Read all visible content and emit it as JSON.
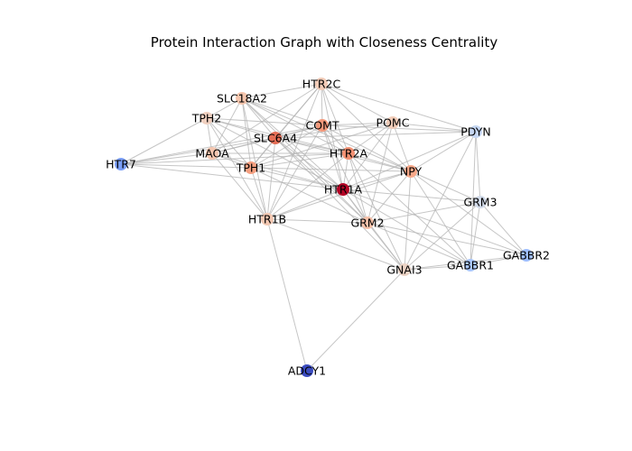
{
  "title": "Protein Interaction Graph with Closeness Centrality",
  "colors": {
    "edge": "#b3b3b3",
    "low": "#3b4cc0",
    "mid": "#dddddd",
    "high": "#b40426"
  },
  "nodes": [
    {
      "id": "HTR2C",
      "color": "#f2cbb7"
    },
    {
      "id": "SLC18A2",
      "color": "#f4c5ad"
    },
    {
      "id": "TPH2",
      "color": "#efcfbf"
    },
    {
      "id": "COMT",
      "color": "#f4987a"
    },
    {
      "id": "POMC",
      "color": "#f1ccb8"
    },
    {
      "id": "PDYN",
      "color": "#c5d6f2"
    },
    {
      "id": "SLC6A4",
      "color": "#e46e56"
    },
    {
      "id": "HTR2A",
      "color": "#f29072"
    },
    {
      "id": "MAOA",
      "color": "#f4c6af"
    },
    {
      "id": "TPH1",
      "color": "#f5a081"
    },
    {
      "id": "NPY",
      "color": "#f7a889"
    },
    {
      "id": "HTR7",
      "color": "#7b9ff9"
    },
    {
      "id": "HTR1A",
      "color": "#b40426"
    },
    {
      "id": "GRM3",
      "color": "#d1dae9"
    },
    {
      "id": "HTR1B",
      "color": "#f3c8b2"
    },
    {
      "id": "GRM2",
      "color": "#f5c1a9"
    },
    {
      "id": "GABBR2",
      "color": "#9ebeff"
    },
    {
      "id": "GNAI3",
      "color": "#ecd3c5"
    },
    {
      "id": "GABBR1",
      "color": "#aac7fd"
    },
    {
      "id": "ADCY1",
      "color": "#3b4cc0"
    }
  ],
  "edges": [
    [
      "HTR2C",
      "SLC18A2"
    ],
    [
      "HTR2C",
      "COMT"
    ],
    [
      "HTR2C",
      "POMC"
    ],
    [
      "HTR2C",
      "PDYN"
    ],
    [
      "HTR2C",
      "SLC6A4"
    ],
    [
      "HTR2C",
      "HTR2A"
    ],
    [
      "HTR2C",
      "TPH1"
    ],
    [
      "HTR2C",
      "HTR1A"
    ],
    [
      "HTR2C",
      "NPY"
    ],
    [
      "HTR2C",
      "MAOA"
    ],
    [
      "HTR2C",
      "HTR1B"
    ],
    [
      "SLC18A2",
      "TPH2"
    ],
    [
      "SLC18A2",
      "COMT"
    ],
    [
      "SLC18A2",
      "SLC6A4"
    ],
    [
      "SLC18A2",
      "MAOA"
    ],
    [
      "SLC18A2",
      "TPH1"
    ],
    [
      "SLC18A2",
      "HTR2A"
    ],
    [
      "SLC18A2",
      "HTR1A"
    ],
    [
      "SLC18A2",
      "HTR1B"
    ],
    [
      "SLC18A2",
      "NPY"
    ],
    [
      "SLC18A2",
      "GRM2"
    ],
    [
      "TPH2",
      "SLC6A4"
    ],
    [
      "TPH2",
      "MAOA"
    ],
    [
      "TPH2",
      "TPH1"
    ],
    [
      "TPH2",
      "HTR7"
    ],
    [
      "TPH2",
      "HTR1A"
    ],
    [
      "TPH2",
      "COMT"
    ],
    [
      "TPH2",
      "HTR1B"
    ],
    [
      "TPH2",
      "HTR2A"
    ],
    [
      "COMT",
      "SLC6A4"
    ],
    [
      "COMT",
      "HTR2A"
    ],
    [
      "COMT",
      "MAOA"
    ],
    [
      "COMT",
      "TPH1"
    ],
    [
      "COMT",
      "POMC"
    ],
    [
      "COMT",
      "HTR1A"
    ],
    [
      "COMT",
      "NPY"
    ],
    [
      "COMT",
      "HTR1B"
    ],
    [
      "COMT",
      "GRM2"
    ],
    [
      "COMT",
      "PDYN"
    ],
    [
      "COMT",
      "HTR7"
    ],
    [
      "POMC",
      "PDYN"
    ],
    [
      "POMC",
      "NPY"
    ],
    [
      "POMC",
      "HTR2A"
    ],
    [
      "POMC",
      "SLC6A4"
    ],
    [
      "POMC",
      "HTR1A"
    ],
    [
      "POMC",
      "GRM2"
    ],
    [
      "POMC",
      "TPH1"
    ],
    [
      "PDYN",
      "NPY"
    ],
    [
      "PDYN",
      "GRM3"
    ],
    [
      "PDYN",
      "GNAI3"
    ],
    [
      "PDYN",
      "GABBR1"
    ],
    [
      "PDYN",
      "HTR1A"
    ],
    [
      "PDYN",
      "SLC6A4"
    ],
    [
      "SLC6A4",
      "MAOA"
    ],
    [
      "SLC6A4",
      "TPH1"
    ],
    [
      "SLC6A4",
      "HTR2A"
    ],
    [
      "SLC6A4",
      "HTR1A"
    ],
    [
      "SLC6A4",
      "HTR7"
    ],
    [
      "SLC6A4",
      "NPY"
    ],
    [
      "SLC6A4",
      "GRM2"
    ],
    [
      "SLC6A4",
      "HTR1B"
    ],
    [
      "SLC6A4",
      "GNAI3"
    ],
    [
      "HTR2A",
      "MAOA"
    ],
    [
      "HTR2A",
      "TPH1"
    ],
    [
      "HTR2A",
      "NPY"
    ],
    [
      "HTR2A",
      "HTR1A"
    ],
    [
      "HTR2A",
      "GRM2"
    ],
    [
      "HTR2A",
      "GNAI3"
    ],
    [
      "HTR2A",
      "HTR1B"
    ],
    [
      "HTR2A",
      "GABBR1"
    ],
    [
      "HTR2A",
      "HTR7"
    ],
    [
      "MAOA",
      "TPH1"
    ],
    [
      "MAOA",
      "HTR7"
    ],
    [
      "MAOA",
      "HTR1A"
    ],
    [
      "MAOA",
      "HTR1B"
    ],
    [
      "TPH1",
      "HTR7"
    ],
    [
      "TPH1",
      "HTR1A"
    ],
    [
      "TPH1",
      "NPY"
    ],
    [
      "TPH1",
      "HTR1B"
    ],
    [
      "TPH1",
      "GRM2"
    ],
    [
      "NPY",
      "HTR1A"
    ],
    [
      "NPY",
      "GRM3"
    ],
    [
      "NPY",
      "GABBR1"
    ],
    [
      "NPY",
      "GRM2"
    ],
    [
      "NPY",
      "HTR1B"
    ],
    [
      "NPY",
      "GABBR2"
    ],
    [
      "NPY",
      "GNAI3"
    ],
    [
      "HTR7",
      "HTR1A"
    ],
    [
      "HTR1A",
      "GRM3"
    ],
    [
      "HTR1A",
      "GRM2"
    ],
    [
      "HTR1A",
      "GNAI3"
    ],
    [
      "HTR1A",
      "GABBR1"
    ],
    [
      "HTR1A",
      "HTR1B"
    ],
    [
      "HTR1A",
      "GABBR2"
    ],
    [
      "GRM3",
      "GABBR2"
    ],
    [
      "GRM3",
      "GABBR1"
    ],
    [
      "GRM3",
      "GNAI3"
    ],
    [
      "GRM3",
      "GRM2"
    ],
    [
      "HTR1B",
      "GRM2"
    ],
    [
      "HTR1B",
      "GNAI3"
    ],
    [
      "HTR1B",
      "ADCY1"
    ],
    [
      "GRM2",
      "GNAI3"
    ],
    [
      "GRM2",
      "GABBR1"
    ],
    [
      "GRM2",
      "GABBR2"
    ],
    [
      "GNAI3",
      "GABBR1"
    ],
    [
      "GNAI3",
      "GABBR2"
    ],
    [
      "GNAI3",
      "ADCY1"
    ],
    [
      "GABBR1",
      "GABBR2"
    ]
  ]
}
